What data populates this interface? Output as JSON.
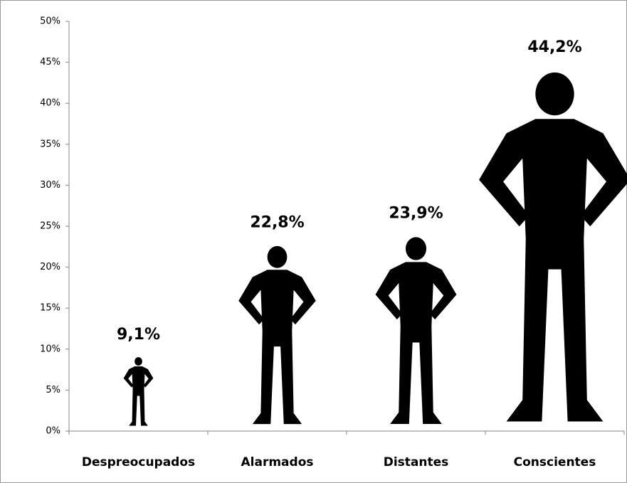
{
  "chart_data": {
    "type": "pictogram",
    "categories": [
      "Despreocupados",
      "Alarmados",
      "Distantes",
      "Conscientes"
    ],
    "values": [
      9.1,
      22.8,
      23.9,
      44.2
    ],
    "value_labels": [
      "9,1%",
      "22,8%",
      "23,9%",
      "44,2%"
    ],
    "color": "#000000",
    "ylim": [
      0,
      50
    ],
    "yticks": [
      {
        "value": 0,
        "label": "0%"
      },
      {
        "value": 5,
        "label": "5%"
      },
      {
        "value": 10,
        "label": "10%"
      },
      {
        "value": 15,
        "label": "15%"
      },
      {
        "value": 20,
        "label": "20%"
      },
      {
        "value": 25,
        "label": "25%"
      },
      {
        "value": 30,
        "label": "30%"
      },
      {
        "value": 35,
        "label": "35%"
      },
      {
        "value": 40,
        "label": "40%"
      },
      {
        "value": 45,
        "label": "45%"
      },
      {
        "value": 50,
        "label": "50%"
      }
    ]
  }
}
